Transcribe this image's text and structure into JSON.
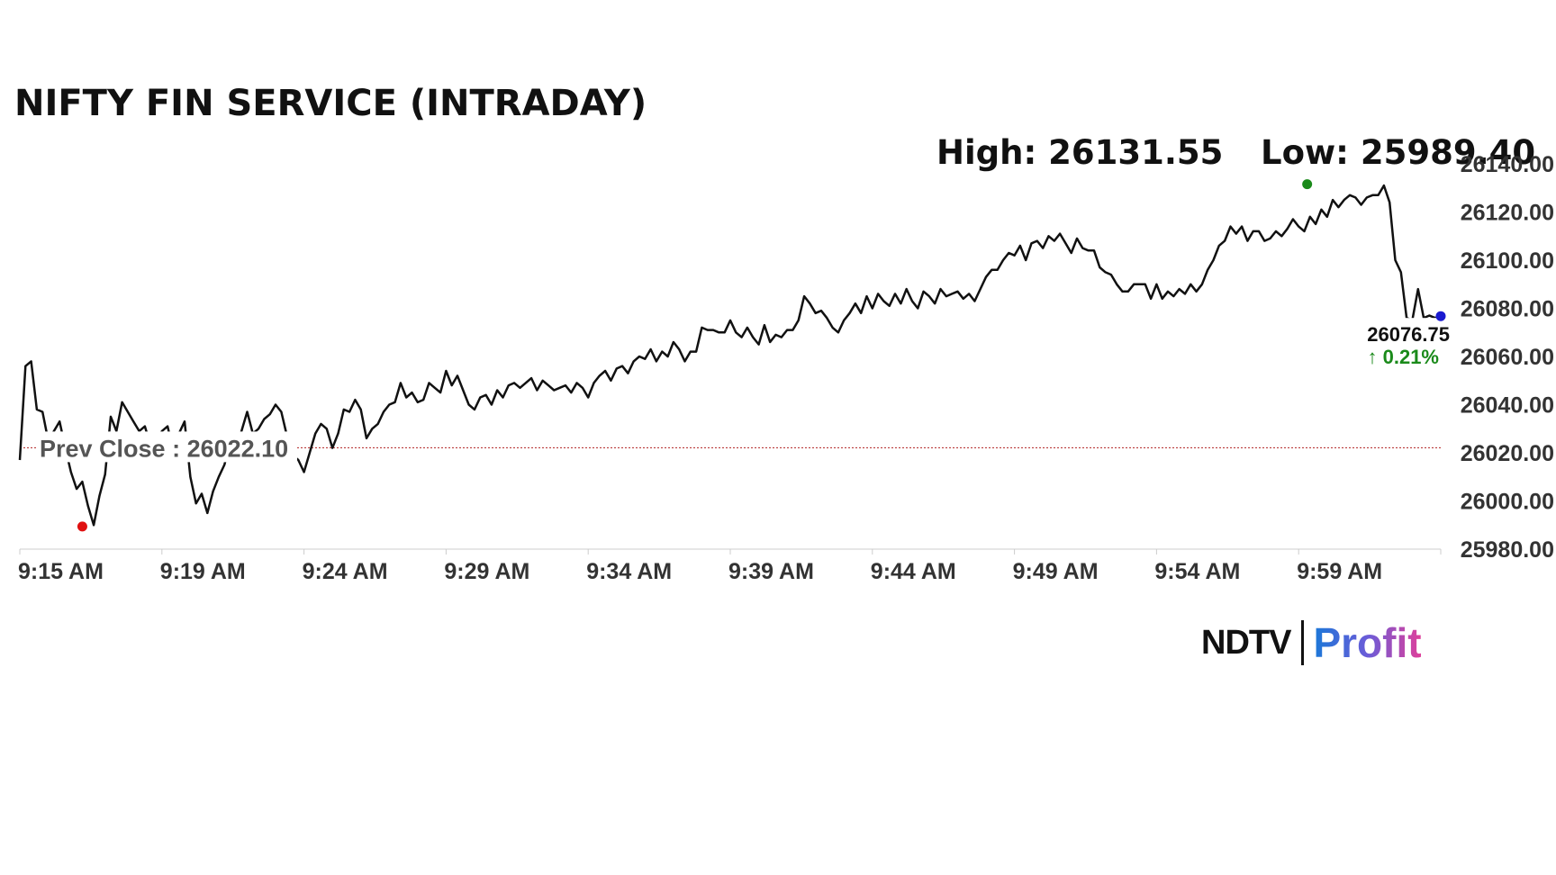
{
  "title": "NIFTY FIN SERVICE (INTRADAY)",
  "stats": {
    "high": "High: 26131.55",
    "low": "Low: 25989.40"
  },
  "logo": {
    "brand": "NDTV",
    "product": "Profit"
  },
  "colors": {
    "line": "#111111",
    "high_marker": "#1a8a1a",
    "low_marker": "#e01010",
    "last_marker": "#1a1ad0",
    "prev_close_line": "#b02020",
    "change": "#1a8a1a",
    "grid": "#cccccc"
  },
  "chart_data": {
    "type": "line",
    "title": "NIFTY FIN SERVICE (INTRADAY)",
    "xlabel": "",
    "ylabel": "",
    "ylim": [
      25980,
      26140
    ],
    "y_ticks": [
      "26140.00",
      "26120.00",
      "26100.00",
      "26080.00",
      "26060.00",
      "26040.00",
      "26020.00",
      "26000.00",
      "25980.00"
    ],
    "x_range_minutes": [
      0,
      50
    ],
    "x_ticks": [
      {
        "label": "9:15 AM",
        "min": 0
      },
      {
        "label": "9:19 AM",
        "min": 5
      },
      {
        "label": "9:24 AM",
        "min": 10
      },
      {
        "label": "9:29 AM",
        "min": 15
      },
      {
        "label": "9:34 AM",
        "min": 20
      },
      {
        "label": "9:39 AM",
        "min": 25
      },
      {
        "label": "9:44 AM",
        "min": 30
      },
      {
        "label": "9:49 AM",
        "min": 35
      },
      {
        "label": "9:54 AM",
        "min": 40
      },
      {
        "label": "9:59 AM",
        "min": 45
      }
    ],
    "prev_close": 26022.1,
    "prev_close_label": "Prev Close : 26022.10",
    "last_value_label": "26076.75",
    "change_label": "↑ 0.21%",
    "high": {
      "min": 45.3,
      "value": 26131.55
    },
    "low": {
      "min": 2.2,
      "value": 25989.4
    },
    "last": {
      "min": 50.0,
      "value": 26076.75
    },
    "series": [
      {
        "points": [
          [
            0.0,
            26017
          ],
          [
            0.2,
            26056
          ],
          [
            0.4,
            26058
          ],
          [
            0.6,
            26038
          ],
          [
            0.8,
            26037
          ],
          [
            1.0,
            26025
          ],
          [
            1.2,
            26029
          ],
          [
            1.4,
            26033
          ],
          [
            1.6,
            26022
          ],
          [
            1.8,
            26012
          ],
          [
            2.0,
            26005
          ],
          [
            2.2,
            26008
          ],
          [
            2.4,
            25998
          ],
          [
            2.6,
            25990
          ],
          [
            2.8,
            26002
          ],
          [
            3.0,
            26011
          ],
          [
            3.2,
            26035
          ],
          [
            3.4,
            26029
          ],
          [
            3.6,
            26041
          ],
          [
            3.8,
            26037
          ],
          [
            4.0,
            26033
          ],
          [
            4.2,
            26029
          ],
          [
            4.4,
            26031
          ],
          [
            4.6,
            26023
          ],
          [
            4.8,
            26024
          ],
          [
            5.0,
            26029
          ],
          [
            5.2,
            26031
          ],
          [
            5.4,
            26021
          ],
          [
            5.6,
            26028
          ],
          [
            5.8,
            26033
          ],
          [
            6.0,
            26010
          ],
          [
            6.2,
            25999
          ],
          [
            6.4,
            26003
          ],
          [
            6.6,
            25995
          ],
          [
            6.8,
            26004
          ],
          [
            7.0,
            26010
          ],
          [
            7.2,
            26015
          ],
          [
            7.4,
            26024
          ],
          [
            7.6,
            26023
          ],
          [
            7.8,
            26029
          ],
          [
            8.0,
            26037
          ],
          [
            8.2,
            26028
          ],
          [
            8.4,
            26030
          ],
          [
            8.6,
            26034
          ],
          [
            8.8,
            26036
          ],
          [
            9.0,
            26040
          ],
          [
            9.2,
            26037
          ],
          [
            9.4,
            26027
          ],
          [
            9.6,
            26019
          ],
          [
            9.8,
            26017
          ],
          [
            10.0,
            26012
          ],
          [
            10.2,
            26020
          ],
          [
            10.4,
            26028
          ],
          [
            10.6,
            26032
          ],
          [
            10.8,
            26030
          ],
          [
            11.0,
            26022
          ],
          [
            11.2,
            26028
          ],
          [
            11.4,
            26038
          ],
          [
            11.6,
            26037
          ],
          [
            11.8,
            26042
          ],
          [
            12.0,
            26038
          ],
          [
            12.2,
            26026
          ],
          [
            12.4,
            26030
          ],
          [
            12.6,
            26032
          ],
          [
            12.8,
            26037
          ],
          [
            13.0,
            26040
          ],
          [
            13.2,
            26041
          ],
          [
            13.4,
            26049
          ],
          [
            13.6,
            26043
          ],
          [
            13.8,
            26045
          ],
          [
            14.0,
            26041
          ],
          [
            14.2,
            26042
          ],
          [
            14.4,
            26049
          ],
          [
            14.6,
            26047
          ],
          [
            14.8,
            26045
          ],
          [
            15.0,
            26054
          ],
          [
            15.2,
            26048
          ],
          [
            15.4,
            26052
          ],
          [
            15.6,
            26046
          ],
          [
            15.8,
            26040
          ],
          [
            16.0,
            26038
          ],
          [
            16.2,
            26043
          ],
          [
            16.4,
            26044
          ],
          [
            16.6,
            26040
          ],
          [
            16.8,
            26046
          ],
          [
            17.0,
            26043
          ],
          [
            17.2,
            26048
          ],
          [
            17.4,
            26049
          ],
          [
            17.6,
            26047
          ],
          [
            17.8,
            26049
          ],
          [
            18.0,
            26051
          ],
          [
            18.2,
            26046
          ],
          [
            18.4,
            26050
          ],
          [
            18.6,
            26048
          ],
          [
            18.8,
            26046
          ],
          [
            19.0,
            26047
          ],
          [
            19.2,
            26048
          ],
          [
            19.4,
            26045
          ],
          [
            19.6,
            26049
          ],
          [
            19.8,
            26047
          ],
          [
            20.0,
            26043
          ],
          [
            20.2,
            26049
          ],
          [
            20.4,
            26052
          ],
          [
            20.6,
            26054
          ],
          [
            20.8,
            26050
          ],
          [
            21.0,
            26055
          ],
          [
            21.2,
            26056
          ],
          [
            21.4,
            26053
          ],
          [
            21.6,
            26058
          ],
          [
            21.8,
            26060
          ],
          [
            22.0,
            26059
          ],
          [
            22.2,
            26063
          ],
          [
            22.4,
            26058
          ],
          [
            22.6,
            26062
          ],
          [
            22.8,
            26060
          ],
          [
            23.0,
            26066
          ],
          [
            23.2,
            26063
          ],
          [
            23.4,
            26058
          ],
          [
            23.6,
            26062
          ],
          [
            23.8,
            26062
          ],
          [
            24.0,
            26072
          ],
          [
            24.2,
            26071
          ],
          [
            24.4,
            26071
          ],
          [
            24.6,
            26070
          ],
          [
            24.8,
            26070
          ],
          [
            25.0,
            26075
          ],
          [
            25.2,
            26070
          ],
          [
            25.4,
            26068
          ],
          [
            25.6,
            26072
          ],
          [
            25.8,
            26068
          ],
          [
            26.0,
            26065
          ],
          [
            26.2,
            26073
          ],
          [
            26.4,
            26066
          ],
          [
            26.6,
            26069
          ],
          [
            26.8,
            26068
          ],
          [
            27.0,
            26071
          ],
          [
            27.2,
            26071
          ],
          [
            27.4,
            26075
          ],
          [
            27.6,
            26085
          ],
          [
            27.8,
            26082
          ],
          [
            28.0,
            26078
          ],
          [
            28.2,
            26079
          ],
          [
            28.4,
            26076
          ],
          [
            28.6,
            26072
          ],
          [
            28.8,
            26070
          ],
          [
            29.0,
            26075
          ],
          [
            29.2,
            26078
          ],
          [
            29.4,
            26082
          ],
          [
            29.6,
            26078
          ],
          [
            29.8,
            26085
          ],
          [
            30.0,
            26080
          ],
          [
            30.2,
            26086
          ],
          [
            30.4,
            26083
          ],
          [
            30.6,
            26081
          ],
          [
            30.8,
            26086
          ],
          [
            31.0,
            26082
          ],
          [
            31.2,
            26088
          ],
          [
            31.4,
            26083
          ],
          [
            31.6,
            26080
          ],
          [
            31.8,
            26087
          ],
          [
            32.0,
            26085
          ],
          [
            32.2,
            26082
          ],
          [
            32.4,
            26088
          ],
          [
            32.6,
            26085
          ],
          [
            32.8,
            26086
          ],
          [
            33.0,
            26087
          ],
          [
            33.2,
            26084
          ],
          [
            33.4,
            26086
          ],
          [
            33.6,
            26083
          ],
          [
            33.8,
            26088
          ],
          [
            34.0,
            26093
          ],
          [
            34.2,
            26096
          ],
          [
            34.4,
            26096
          ],
          [
            34.6,
            26100
          ],
          [
            34.8,
            26103
          ],
          [
            35.0,
            26102
          ],
          [
            35.2,
            26106
          ],
          [
            35.4,
            26100
          ],
          [
            35.6,
            26107
          ],
          [
            35.8,
            26108
          ],
          [
            36.0,
            26105
          ],
          [
            36.2,
            26110
          ],
          [
            36.4,
            26108
          ],
          [
            36.6,
            26111
          ],
          [
            36.8,
            26107
          ],
          [
            37.0,
            26103
          ],
          [
            37.2,
            26109
          ],
          [
            37.4,
            26105
          ],
          [
            37.6,
            26104
          ],
          [
            37.8,
            26104
          ],
          [
            38.0,
            26097
          ],
          [
            38.2,
            26095
          ],
          [
            38.4,
            26094
          ],
          [
            38.6,
            26090
          ],
          [
            38.8,
            26087
          ],
          [
            39.0,
            26087
          ],
          [
            39.2,
            26090
          ],
          [
            39.4,
            26090
          ],
          [
            39.6,
            26090
          ],
          [
            39.8,
            26084
          ],
          [
            40.0,
            26090
          ],
          [
            40.2,
            26084
          ],
          [
            40.4,
            26087
          ],
          [
            40.6,
            26085
          ],
          [
            40.8,
            26088
          ],
          [
            41.0,
            26086
          ],
          [
            41.2,
            26090
          ],
          [
            41.4,
            26087
          ],
          [
            41.6,
            26090
          ],
          [
            41.8,
            26096
          ],
          [
            42.0,
            26100
          ],
          [
            42.2,
            26106
          ],
          [
            42.4,
            26108
          ],
          [
            42.6,
            26114
          ],
          [
            42.8,
            26111
          ],
          [
            43.0,
            26114
          ],
          [
            43.2,
            26108
          ],
          [
            43.4,
            26112
          ],
          [
            43.6,
            26112
          ],
          [
            43.8,
            26108
          ],
          [
            44.0,
            26109
          ],
          [
            44.2,
            26112
          ],
          [
            44.4,
            26110
          ],
          [
            44.6,
            26113
          ],
          [
            44.8,
            26117
          ],
          [
            45.0,
            26114
          ],
          [
            45.2,
            26112
          ],
          [
            45.4,
            26118
          ],
          [
            45.6,
            26115
          ],
          [
            45.8,
            26121
          ],
          [
            46.0,
            26118
          ],
          [
            46.2,
            26125
          ],
          [
            46.4,
            26122
          ],
          [
            46.6,
            26125
          ],
          [
            46.8,
            26127
          ],
          [
            47.0,
            26126
          ],
          [
            47.2,
            26123
          ],
          [
            47.4,
            26126
          ],
          [
            47.6,
            26127
          ],
          [
            47.8,
            26127
          ],
          [
            48.0,
            26131
          ],
          [
            48.2,
            26124
          ],
          [
            48.4,
            26100
          ],
          [
            48.6,
            26095
          ],
          [
            48.8,
            26076
          ],
          [
            49.0,
            26075
          ],
          [
            49.2,
            26088
          ],
          [
            49.4,
            26076
          ],
          [
            49.6,
            26077
          ],
          [
            49.8,
            26076
          ],
          [
            50.0,
            26076.75
          ]
        ]
      }
    ]
  }
}
